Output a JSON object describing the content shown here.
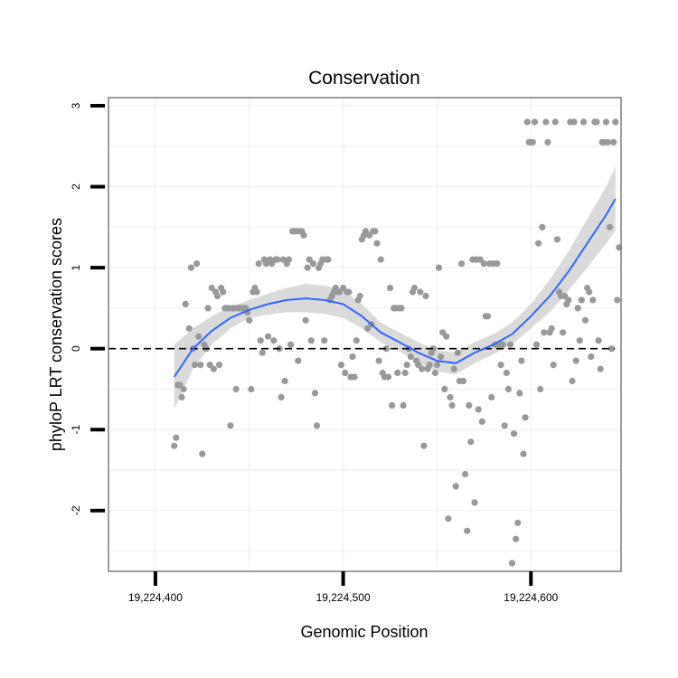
{
  "chart_data": {
    "type": "scatter",
    "title": "Conservation",
    "xlabel": "Genomic Position",
    "ylabel": "phyloP LRT conservation scores",
    "xlim": [
      19224375,
      19224648
    ],
    "ylim": [
      -2.75,
      3.1
    ],
    "x_ticks": [
      19224400,
      19224500,
      19224600
    ],
    "x_tick_labels": [
      "19,224,400",
      "19,224,500",
      "19,224,600"
    ],
    "y_ticks": [
      -2,
      -1,
      0,
      1,
      2,
      3
    ],
    "y_tick_labels": [
      "-2",
      "-1",
      "0",
      "1",
      "2",
      "3"
    ],
    "grid": true,
    "reference_line": {
      "y": 0,
      "style": "dashed",
      "color": "#000000"
    },
    "colors": {
      "points": "#999999",
      "smooth": "#3366ff",
      "ribbon": "#d4d4d4",
      "panel_border": "#7f7f7f",
      "grid": "#f2f2f2"
    },
    "series": [
      {
        "kind": "points",
        "points": [
          [
            19224410,
            -1.2
          ],
          [
            19224411,
            -1.1
          ],
          [
            19224412,
            -0.45
          ],
          [
            19224413,
            -0.45
          ],
          [
            19224414,
            -0.6
          ],
          [
            19224415,
            -0.5
          ],
          [
            19224416,
            0.55
          ],
          [
            19224418,
            0.25
          ],
          [
            19224419,
            1.0
          ],
          [
            19224420,
            0.0
          ],
          [
            19224421,
            -0.2
          ],
          [
            19224422,
            1.05
          ],
          [
            19224423,
            0.15
          ],
          [
            19224424,
            -0.2
          ],
          [
            19224425,
            -1.3
          ],
          [
            19224426,
            0.05
          ],
          [
            19224427,
            0.0
          ],
          [
            19224428,
            0.5
          ],
          [
            19224429,
            -0.2
          ],
          [
            19224430,
            0.75
          ],
          [
            19224431,
            -0.25
          ],
          [
            19224432,
            0.7
          ],
          [
            19224433,
            0.65
          ],
          [
            19224434,
            -0.2
          ],
          [
            19224435,
            0.75
          ],
          [
            19224436,
            0.7
          ],
          [
            19224437,
            0.5
          ],
          [
            19224438,
            0.5
          ],
          [
            19224439,
            0.5
          ],
          [
            19224440,
            -0.95
          ],
          [
            19224441,
            0.5
          ],
          [
            19224442,
            0.5
          ],
          [
            19224443,
            -0.5
          ],
          [
            19224444,
            0.5
          ],
          [
            19224445,
            0.5
          ],
          [
            19224446,
            0.5
          ],
          [
            19224447,
            0.5
          ],
          [
            19224448,
            0.5
          ],
          [
            19224449,
            0.45
          ],
          [
            19224450,
            0.35
          ],
          [
            19224451,
            -0.5
          ],
          [
            19224452,
            0.7
          ],
          [
            19224453,
            0.75
          ],
          [
            19224454,
            0.7
          ],
          [
            19224455,
            1.05
          ],
          [
            19224456,
            0.1
          ],
          [
            19224457,
            -0.05
          ],
          [
            19224458,
            1.1
          ],
          [
            19224459,
            1.05
          ],
          [
            19224460,
            0.15
          ],
          [
            19224461,
            1.1
          ],
          [
            19224462,
            1.05
          ],
          [
            19224463,
            0.1
          ],
          [
            19224464,
            1.1
          ],
          [
            19224465,
            1.1
          ],
          [
            19224466,
            0.0
          ],
          [
            19224467,
            -0.6
          ],
          [
            19224468,
            1.1
          ],
          [
            19224469,
            -0.4
          ],
          [
            19224470,
            1.05
          ],
          [
            19224471,
            1.1
          ],
          [
            19224472,
            0.05
          ],
          [
            19224473,
            1.45
          ],
          [
            19224474,
            1.45
          ],
          [
            19224475,
            1.45
          ],
          [
            19224476,
            -0.15
          ],
          [
            19224477,
            1.45
          ],
          [
            19224478,
            1.45
          ],
          [
            19224479,
            1.4
          ],
          [
            19224480,
            0.35
          ],
          [
            19224481,
            1.0
          ],
          [
            19224482,
            1.1
          ],
          [
            19224483,
            0.1
          ],
          [
            19224484,
            1.05
          ],
          [
            19224485,
            -0.55
          ],
          [
            19224486,
            -0.95
          ],
          [
            19224487,
            1.0
          ],
          [
            19224488,
            1.05
          ],
          [
            19224489,
            1.1
          ],
          [
            19224490,
            0.1
          ],
          [
            19224491,
            1.1
          ],
          [
            19224492,
            1.1
          ],
          [
            19224493,
            0.6
          ],
          [
            19224494,
            0.65
          ],
          [
            19224495,
            0.7
          ],
          [
            19224496,
            0.75
          ],
          [
            19224497,
            0.7
          ],
          [
            19224498,
            0.7
          ],
          [
            19224499,
            -0.2
          ],
          [
            19224500,
            0.75
          ],
          [
            19224501,
            -0.3
          ],
          [
            19224502,
            0.7
          ],
          [
            19224503,
            0.7
          ],
          [
            19224504,
            -0.35
          ],
          [
            19224505,
            -0.1
          ],
          [
            19224506,
            -0.35
          ],
          [
            19224507,
            0.1
          ],
          [
            19224508,
            0.6
          ],
          [
            19224509,
            0.65
          ],
          [
            19224510,
            1.35
          ],
          [
            19224511,
            1.4
          ],
          [
            19224512,
            1.45
          ],
          [
            19224513,
            0.25
          ],
          [
            19224514,
            1.4
          ],
          [
            19224515,
            0.3
          ],
          [
            19224516,
            1.45
          ],
          [
            19224517,
            1.45
          ],
          [
            19224518,
            1.3
          ],
          [
            19224519,
            -0.15
          ],
          [
            19224520,
            1.1
          ],
          [
            19224521,
            -0.3
          ],
          [
            19224522,
            -0.35
          ],
          [
            19224523,
            0.0
          ],
          [
            19224524,
            -0.35
          ],
          [
            19224525,
            0.75
          ],
          [
            19224526,
            -0.7
          ],
          [
            19224527,
            0.5
          ],
          [
            19224528,
            0.5
          ],
          [
            19224529,
            -0.3
          ],
          [
            19224530,
            0.5
          ],
          [
            19224531,
            0.5
          ],
          [
            19224532,
            -0.7
          ],
          [
            19224533,
            -0.3
          ],
          [
            19224534,
            -0.2
          ],
          [
            19224535,
            0.0
          ],
          [
            19224536,
            -0.1
          ],
          [
            19224537,
            0.7
          ],
          [
            19224538,
            0.75
          ],
          [
            19224539,
            -0.15
          ],
          [
            19224540,
            -0.2
          ],
          [
            19224541,
            0.7
          ],
          [
            19224542,
            -0.25
          ],
          [
            19224543,
            -1.2
          ],
          [
            19224544,
            0.65
          ],
          [
            19224545,
            -0.25
          ],
          [
            19224546,
            -0.2
          ],
          [
            19224547,
            -0.05
          ],
          [
            19224548,
            0.0
          ],
          [
            19224549,
            -0.3
          ],
          [
            19224550,
            -0.2
          ],
          [
            19224551,
            1.0
          ],
          [
            19224552,
            -0.1
          ],
          [
            19224553,
            0.2
          ],
          [
            19224554,
            -0.5
          ],
          [
            19224555,
            0.15
          ],
          [
            19224556,
            -2.1
          ],
          [
            19224557,
            -0.6
          ],
          [
            19224558,
            -0.7
          ],
          [
            19224559,
            -0.25
          ],
          [
            19224560,
            -1.7
          ],
          [
            19224561,
            -0.05
          ],
          [
            19224562,
            -0.4
          ],
          [
            19224563,
            1.05
          ],
          [
            19224564,
            -0.4
          ],
          [
            19224565,
            -1.55
          ],
          [
            19224566,
            -2.25
          ],
          [
            19224567,
            -0.7
          ],
          [
            19224568,
            -1.15
          ],
          [
            19224569,
            1.1
          ],
          [
            19224570,
            -1.9
          ],
          [
            19224571,
            1.1
          ],
          [
            19224572,
            -0.75
          ],
          [
            19224573,
            1.1
          ],
          [
            19224574,
            -0.9
          ],
          [
            19224575,
            1.05
          ],
          [
            19224576,
            0.4
          ],
          [
            19224577,
            0.4
          ],
          [
            19224578,
            1.05
          ],
          [
            19224579,
            -0.6
          ],
          [
            19224580,
            1.05
          ],
          [
            19224581,
            0.05
          ],
          [
            19224582,
            1.05
          ],
          [
            19224583,
            0.05
          ],
          [
            19224584,
            -0.2
          ],
          [
            19224585,
            0.05
          ],
          [
            19224586,
            -0.95
          ],
          [
            19224587,
            -0.3
          ],
          [
            19224588,
            -0.5
          ],
          [
            19224589,
            0.05
          ],
          [
            19224590,
            -2.65
          ],
          [
            19224591,
            -1.05
          ],
          [
            19224592,
            -2.35
          ],
          [
            19224593,
            -2.15
          ],
          [
            19224594,
            -0.55
          ],
          [
            19224595,
            -0.15
          ],
          [
            19224596,
            -1.3
          ],
          [
            19224597,
            -0.85
          ],
          [
            19224598,
            2.8
          ],
          [
            19224599,
            2.55
          ],
          [
            19224600,
            2.55
          ],
          [
            19224601,
            2.55
          ],
          [
            19224602,
            2.8
          ],
          [
            19224603,
            0.05
          ],
          [
            19224604,
            1.3
          ],
          [
            19224605,
            -0.5
          ],
          [
            19224606,
            1.5
          ],
          [
            19224607,
            0.2
          ],
          [
            19224608,
            2.8
          ],
          [
            19224609,
            2.55
          ],
          [
            19224610,
            0.2
          ],
          [
            19224611,
            0.25
          ],
          [
            19224612,
            -0.2
          ],
          [
            19224613,
            2.8
          ],
          [
            19224614,
            1.35
          ],
          [
            19224615,
            0.7
          ],
          [
            19224616,
            0.65
          ],
          [
            19224617,
            0.2
          ],
          [
            19224618,
            0.65
          ],
          [
            19224619,
            0.55
          ],
          [
            19224620,
            0.6
          ],
          [
            19224621,
            2.8
          ],
          [
            19224622,
            -0.4
          ],
          [
            19224623,
            2.8
          ],
          [
            19224624,
            -0.15
          ],
          [
            19224625,
            0.5
          ],
          [
            19224626,
            0.1
          ],
          [
            19224627,
            0.6
          ],
          [
            19224628,
            2.8
          ],
          [
            19224629,
            0.35
          ],
          [
            19224630,
            0.75
          ],
          [
            19224631,
            0.7
          ],
          [
            19224632,
            -0.1
          ],
          [
            19224633,
            0.6
          ],
          [
            19224634,
            2.8
          ],
          [
            19224635,
            2.8
          ],
          [
            19224636,
            0.1
          ],
          [
            19224637,
            -0.25
          ],
          [
            19224638,
            2.55
          ],
          [
            19224639,
            2.55
          ],
          [
            19224640,
            2.8
          ],
          [
            19224641,
            2.55
          ],
          [
            19224642,
            1.5
          ],
          [
            19224643,
            0.0
          ],
          [
            19224644,
            2.55
          ],
          [
            19224645,
            2.8
          ],
          [
            19224646,
            0.6
          ],
          [
            19224647,
            1.25
          ]
        ]
      },
      {
        "kind": "smooth",
        "x": [
          19224410,
          19224420,
          19224430,
          19224440,
          19224450,
          19224460,
          19224470,
          19224480,
          19224490,
          19224500,
          19224510,
          19224520,
          19224530,
          19224540,
          19224550,
          19224560,
          19224570,
          19224580,
          19224590,
          19224600,
          19224610,
          19224620,
          19224630,
          19224640,
          19224645
        ],
        "y": [
          -0.35,
          0.0,
          0.22,
          0.38,
          0.48,
          0.55,
          0.6,
          0.62,
          0.6,
          0.55,
          0.4,
          0.2,
          0.08,
          -0.05,
          -0.15,
          -0.18,
          -0.05,
          0.05,
          0.18,
          0.4,
          0.65,
          0.95,
          1.3,
          1.65,
          1.85
        ],
        "lower": [
          -0.75,
          -0.25,
          0.05,
          0.25,
          0.38,
          0.42,
          0.45,
          0.45,
          0.43,
          0.38,
          0.25,
          0.08,
          -0.03,
          -0.18,
          -0.28,
          -0.32,
          -0.18,
          -0.07,
          0.05,
          0.25,
          0.45,
          0.72,
          1.0,
          1.3,
          1.45
        ],
        "upper": [
          0.05,
          0.25,
          0.4,
          0.52,
          0.6,
          0.68,
          0.75,
          0.8,
          0.78,
          0.72,
          0.55,
          0.32,
          0.2,
          0.08,
          -0.02,
          -0.05,
          0.08,
          0.18,
          0.32,
          0.55,
          0.85,
          1.2,
          1.6,
          2.0,
          2.25
        ]
      }
    ]
  }
}
